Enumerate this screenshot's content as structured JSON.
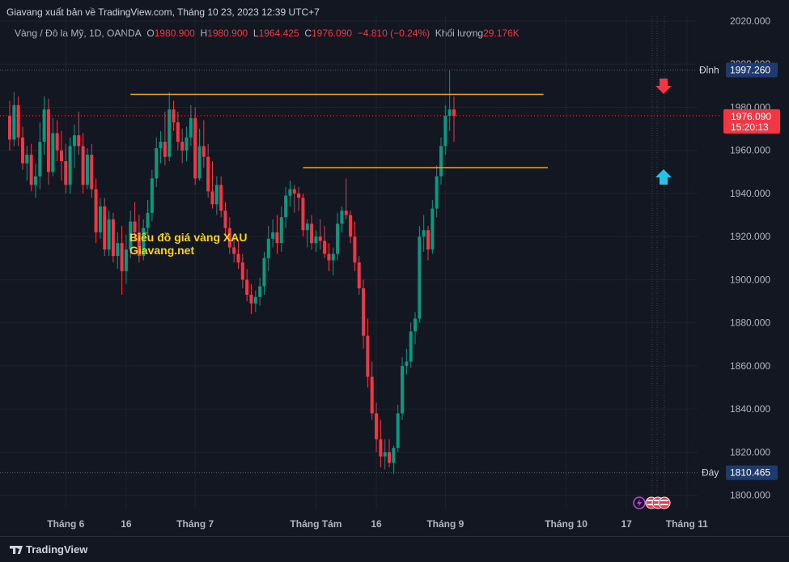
{
  "header": {
    "publisher": "Giavang xuất bản về TradingView.com, Tháng 10 23, 2023 12:39 UTC+7",
    "symbol": "Vàng / Đô la Mỹ, 1D, OANDA",
    "open_label": "O",
    "open": "1980.900",
    "high_label": "H",
    "high": "1980.900",
    "low_label": "L",
    "low": "1964.425",
    "close_label": "C",
    "close": "1976.090",
    "change": "−4.810 (−0.24%)",
    "volume_label": "Khối lượng",
    "volume": "29.176K"
  },
  "watermark": {
    "line1": "Biểu đồ giá vàng XAU",
    "line2": "Giavang.net"
  },
  "footer": {
    "brand": "TradingView"
  },
  "tags": {
    "high_label": "Đỉnh",
    "high_value": "1997.260",
    "low_label": "Đáy",
    "low_value": "1810.465",
    "last_price": "1976.090",
    "countdown": "15:20:13"
  },
  "colors": {
    "up": "#089981",
    "down": "#f23645",
    "level": "#f7a21b",
    "arrow_down": "#f23645",
    "arrow_up": "#22c3e6"
  },
  "chart_data": {
    "type": "candlestick",
    "symbol": "XAU/USD",
    "ylim": [
      1795,
      2022
    ],
    "y_ticks": [
      1800,
      1820,
      1840,
      1860,
      1880,
      1900,
      1920,
      1940,
      1960,
      1980,
      2000,
      2020
    ],
    "y_tick_labels": [
      "1800.000",
      "1820.000",
      "1840.000",
      "1860.000",
      "1880.000",
      "1900.000",
      "1920.000",
      "1940.000",
      "1960.000",
      "1980.000",
      "2000.000",
      "2020.000"
    ],
    "x_labels": [
      {
        "i": 13,
        "label": "Tháng 6"
      },
      {
        "i": 27,
        "label": "16"
      },
      {
        "i": 43,
        "label": "Tháng 7"
      },
      {
        "i": 71,
        "label": "Tháng Tám"
      },
      {
        "i": 85,
        "label": "16"
      },
      {
        "i": 101,
        "label": "Tháng 9"
      },
      {
        "i": 129,
        "label": "Tháng 10"
      },
      {
        "i": 143,
        "label": "17"
      },
      {
        "i": 157,
        "label": "Tháng 11"
      }
    ],
    "candles": [
      [
        1976,
        1983,
        1960,
        1965
      ],
      [
        1965,
        1987,
        1962,
        1981
      ],
      [
        1981,
        1985,
        1962,
        1966
      ],
      [
        1966,
        1971,
        1951,
        1954
      ],
      [
        1954,
        1962,
        1946,
        1958
      ],
      [
        1958,
        1963,
        1941,
        1944
      ],
      [
        1944,
        1954,
        1938,
        1948
      ],
      [
        1948,
        1973,
        1942,
        1964
      ],
      [
        1964,
        1985,
        1958,
        1979
      ],
      [
        1979,
        1984,
        1944,
        1950
      ],
      [
        1950,
        1975,
        1948,
        1968
      ],
      [
        1968,
        1974,
        1955,
        1960
      ],
      [
        1960,
        1969,
        1946,
        1955
      ],
      [
        1955,
        1963,
        1940,
        1944
      ],
      [
        1944,
        1966,
        1940,
        1962
      ],
      [
        1962,
        1972,
        1952,
        1967
      ],
      [
        1967,
        1978,
        1958,
        1962
      ],
      [
        1962,
        1968,
        1940,
        1944
      ],
      [
        1944,
        1961,
        1942,
        1958
      ],
      [
        1958,
        1963,
        1938,
        1942
      ],
      [
        1942,
        1947,
        1917,
        1922
      ],
      [
        1922,
        1938,
        1919,
        1934
      ],
      [
        1934,
        1938,
        1911,
        1914
      ],
      [
        1914,
        1932,
        1911,
        1928
      ],
      [
        1928,
        1931,
        1908,
        1911
      ],
      [
        1911,
        1922,
        1905,
        1917
      ],
      [
        1917,
        1925,
        1893,
        1904
      ],
      [
        1904,
        1921,
        1898,
        1914
      ],
      [
        1914,
        1932,
        1910,
        1927
      ],
      [
        1927,
        1936,
        1918,
        1922
      ],
      [
        1922,
        1930,
        1908,
        1911
      ],
      [
        1911,
        1928,
        1909,
        1924
      ],
      [
        1924,
        1937,
        1920,
        1931
      ],
      [
        1931,
        1951,
        1927,
        1947
      ],
      [
        1947,
        1966,
        1943,
        1961
      ],
      [
        1961,
        1969,
        1954,
        1964
      ],
      [
        1964,
        1978,
        1953,
        1957
      ],
      [
        1957,
        1987,
        1955,
        1979
      ],
      [
        1979,
        1983,
        1969,
        1973
      ],
      [
        1973,
        1978,
        1960,
        1964
      ],
      [
        1964,
        1970,
        1954,
        1960
      ],
      [
        1960,
        1971,
        1955,
        1966
      ],
      [
        1966,
        1981,
        1962,
        1975
      ],
      [
        1975,
        1980,
        1944,
        1947
      ],
      [
        1947,
        1970,
        1946,
        1962
      ],
      [
        1962,
        1974,
        1952,
        1957
      ],
      [
        1957,
        1963,
        1938,
        1941
      ],
      [
        1941,
        1955,
        1933,
        1935
      ],
      [
        1935,
        1948,
        1930,
        1944
      ],
      [
        1944,
        1948,
        1929,
        1932
      ],
      [
        1932,
        1936,
        1921,
        1924
      ],
      [
        1924,
        1929,
        1912,
        1915
      ],
      [
        1915,
        1920,
        1908,
        1912
      ],
      [
        1912,
        1918,
        1905,
        1908
      ],
      [
        1908,
        1912,
        1896,
        1900
      ],
      [
        1900,
        1905,
        1890,
        1893
      ],
      [
        1893,
        1898,
        1884,
        1889
      ],
      [
        1889,
        1895,
        1885,
        1892
      ],
      [
        1892,
        1901,
        1888,
        1897
      ],
      [
        1897,
        1913,
        1893,
        1910
      ],
      [
        1910,
        1925,
        1904,
        1919
      ],
      [
        1919,
        1928,
        1915,
        1922
      ],
      [
        1922,
        1930,
        1912,
        1917
      ],
      [
        1917,
        1934,
        1913,
        1929
      ],
      [
        1929,
        1943,
        1924,
        1939
      ],
      [
        1939,
        1946,
        1934,
        1942
      ],
      [
        1942,
        1944,
        1931,
        1940
      ],
      [
        1940,
        1943,
        1932,
        1938
      ],
      [
        1938,
        1940,
        1920,
        1923
      ],
      [
        1923,
        1928,
        1915,
        1926
      ],
      [
        1926,
        1930,
        1914,
        1917
      ],
      [
        1917,
        1923,
        1913,
        1920
      ],
      [
        1920,
        1928,
        1914,
        1918
      ],
      [
        1918,
        1925,
        1910,
        1912
      ],
      [
        1912,
        1917,
        1904,
        1909
      ],
      [
        1909,
        1915,
        1902,
        1912
      ],
      [
        1912,
        1931,
        1909,
        1926
      ],
      [
        1926,
        1934,
        1922,
        1932
      ],
      [
        1932,
        1947,
        1928,
        1930
      ],
      [
        1930,
        1932,
        1917,
        1920
      ],
      [
        1920,
        1927,
        1904,
        1908
      ],
      [
        1908,
        1911,
        1893,
        1896
      ],
      [
        1896,
        1900,
        1868,
        1874
      ],
      [
        1874,
        1882,
        1850,
        1855
      ],
      [
        1855,
        1862,
        1835,
        1838
      ],
      [
        1838,
        1843,
        1820,
        1826
      ],
      [
        1826,
        1835,
        1813,
        1818
      ],
      [
        1818,
        1826,
        1812,
        1820
      ],
      [
        1820,
        1826,
        1813,
        1815
      ],
      [
        1815,
        1823,
        1810,
        1822
      ],
      [
        1822,
        1842,
        1820,
        1838
      ],
      [
        1838,
        1864,
        1835,
        1860
      ],
      [
        1860,
        1868,
        1856,
        1862
      ],
      [
        1862,
        1880,
        1859,
        1876
      ],
      [
        1876,
        1885,
        1870,
        1882
      ],
      [
        1882,
        1925,
        1880,
        1920
      ],
      [
        1920,
        1930,
        1913,
        1923
      ],
      [
        1923,
        1925,
        1909,
        1914
      ],
      [
        1914,
        1937,
        1912,
        1933
      ],
      [
        1933,
        1953,
        1929,
        1948
      ],
      [
        1948,
        1966,
        1944,
        1962
      ],
      [
        1962,
        1981,
        1958,
        1976
      ],
      [
        1976,
        1997,
        1969,
        1979
      ],
      [
        1979,
        1985,
        1964,
        1976
      ]
    ],
    "levels": [
      {
        "price": 1986,
        "from": 28,
        "to": 120
      },
      {
        "price": 1952,
        "from": 68,
        "to": 121
      }
    ],
    "high_marker": 1997.26,
    "low_marker": 1810.465,
    "last_price": 1976.09
  }
}
